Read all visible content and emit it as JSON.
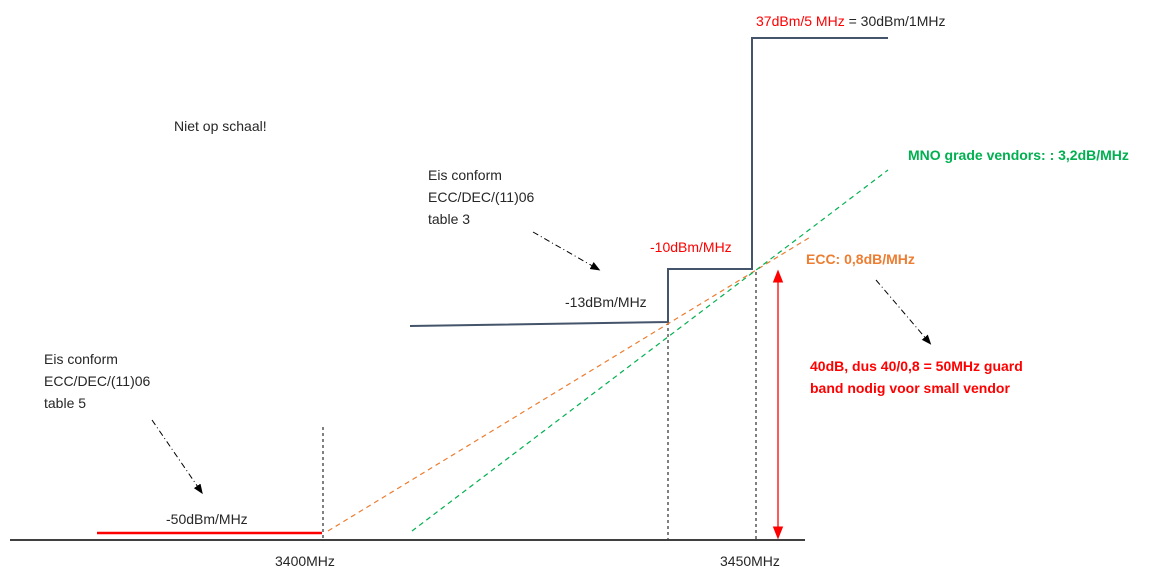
{
  "labels": {
    "not_to_scale": "Niet op schaal!",
    "req_table3_line1": "Eis conform",
    "req_table3_line2": "ECC/DEC/(11)06",
    "req_table3_line3": "table 3",
    "req_table5_line1": "Eis conform",
    "req_table5_line2": "ECC/DEC/(11)06",
    "req_table5_line3": "table 5",
    "level_top_red": "37dBm/5 MHz",
    "level_top_eq": " = 30dBm/1MHz",
    "level_minus10": "-10dBm/MHz",
    "level_minus13": "-13dBm/MHz",
    "level_minus50": "-50dBm/MHz",
    "mno_slope": "MNO grade vendors: : 3,2dB/MHz",
    "ecc_slope": "ECC: 0,8dB/MHz",
    "guard_line1": "40dB, dus 40/0,8 = 50MHz guard",
    "guard_line2": "band nodig voor small vendor",
    "freq_3400": "3400MHz",
    "freq_3450": "3450MHz"
  },
  "colors": {
    "mask_blue": "#44546a",
    "red": "#ff0000",
    "green": "#00b050",
    "orange": "#ed7d31",
    "black": "#000000",
    "text": "#262626"
  }
}
